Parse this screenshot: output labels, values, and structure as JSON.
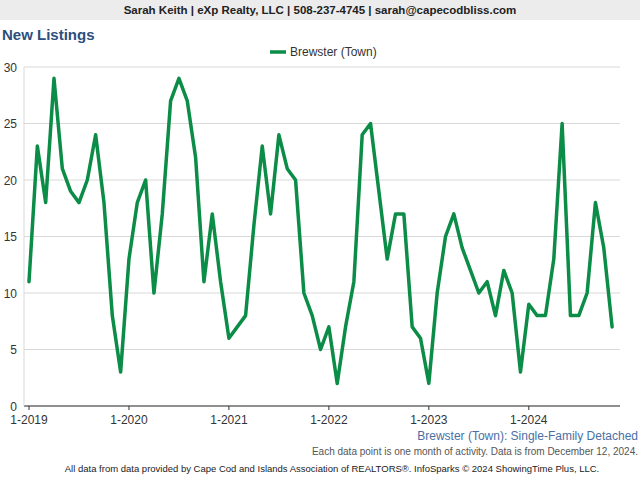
{
  "chart_data": {
    "type": "line",
    "header": "Sarah Keith | eXp Realty, LLC | 508-237-4745 | sarah@capecodbliss.com",
    "title": "New Listings",
    "subtitle": "Brewster (Town): Single-Family Detached",
    "annotations": [
      "Each data point is one month of activity. Data is from December 12, 2024.",
      "All data from data provided by Cape Cod and Islands Association of REALTORS®. InfoSparks © 2024 ShowingTime Plus, LLC."
    ],
    "categories": [
      "1-2019",
      null,
      null,
      null,
      null,
      null,
      null,
      null,
      null,
      null,
      null,
      null,
      "1-2020",
      null,
      null,
      null,
      null,
      null,
      null,
      null,
      null,
      null,
      null,
      null,
      "1-2021",
      null,
      null,
      null,
      null,
      null,
      null,
      null,
      null,
      null,
      null,
      null,
      "1-2022",
      null,
      null,
      null,
      null,
      null,
      null,
      null,
      null,
      null,
      null,
      null,
      "1-2023",
      null,
      null,
      null,
      null,
      null,
      null,
      null,
      null,
      null,
      null,
      null,
      "1-2024",
      null,
      null,
      null,
      null,
      null,
      null,
      null,
      null,
      null,
      null
    ],
    "series": [
      {
        "name": "Brewster (Town)",
        "color": "#0b8c47",
        "values": [
          11,
          23,
          18,
          29,
          21,
          19,
          18,
          20,
          24,
          18,
          8,
          3,
          13,
          18,
          20,
          10,
          17,
          27,
          29,
          27,
          22,
          11,
          17,
          11,
          6,
          7,
          8,
          16,
          23,
          17,
          24,
          21,
          20,
          10,
          8,
          5,
          7,
          2,
          7,
          11,
          24,
          25,
          19,
          13,
          17,
          17,
          7,
          6,
          2,
          10,
          15,
          17,
          14,
          12,
          10,
          11,
          8,
          12,
          10,
          3,
          9,
          8,
          8,
          13,
          25,
          8,
          8,
          10,
          18,
          14,
          7
        ]
      }
    ],
    "ylim": [
      0,
      30
    ],
    "yticks": [
      0,
      5,
      10,
      15,
      20,
      25,
      30
    ],
    "grid": true,
    "legend": "top"
  }
}
